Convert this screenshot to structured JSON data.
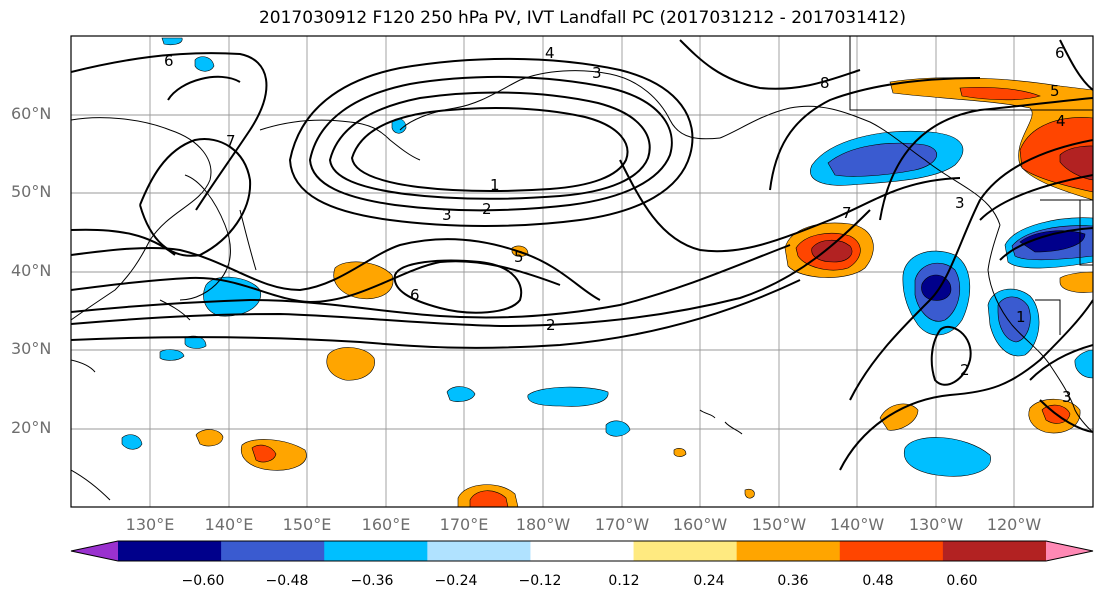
{
  "title": "2017030912 F120 250 hPa PV, IVT Landfall PC (2017031212 - 2017031412)",
  "lat_labels": [
    "60°N",
    "50°N",
    "40°N",
    "30°N",
    "20°N"
  ],
  "lon_labels": [
    "130°E",
    "140°E",
    "150°E",
    "160°E",
    "170°E",
    "180°W",
    "170°W",
    "160°W",
    "150°W",
    "140°W",
    "130°W",
    "120°W"
  ],
  "contour_labels": [
    "6",
    "4",
    "3",
    "8",
    "5",
    "6",
    "4",
    "7",
    "1",
    "2",
    "3",
    "5",
    "6",
    "2",
    "7",
    "3",
    "2",
    "1",
    "3"
  ],
  "colorbar": {
    "ticks": [
      "−0.60",
      "−0.48",
      "−0.36",
      "−0.24",
      "−0.12",
      "0.12",
      "0.24",
      "0.36",
      "0.48",
      "0.60"
    ],
    "colors": [
      "#9a31cf",
      "#00008b",
      "#3a5bd0",
      "#00bfff",
      "#b0e2ff",
      "#ffffff",
      "#ffea80",
      "#ffa500",
      "#ff4500",
      "#b22222",
      "#ff89b5"
    ]
  }
}
